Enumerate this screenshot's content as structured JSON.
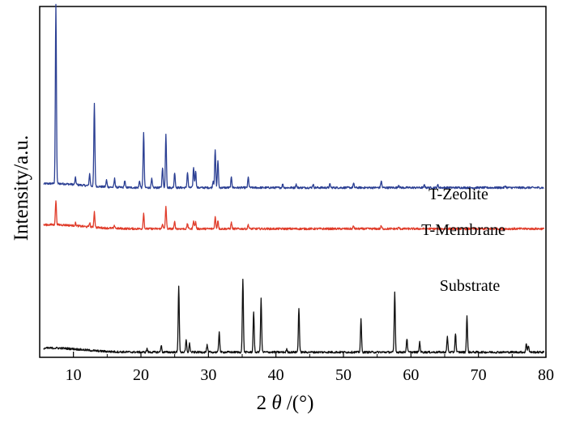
{
  "chart_data": {
    "type": "line",
    "xlabel_prefix": "2",
    "xlabel_symbol": "θ",
    "xlabel_suffix": "/(°)",
    "ylabel": "Intensity/a.u.",
    "xlim": [
      5,
      80
    ],
    "xticks": [
      "10",
      "20",
      "30",
      "40",
      "50",
      "60",
      "70",
      "80"
    ],
    "yticks_shown": false,
    "grid": false,
    "legend": "none",
    "series": [
      {
        "name": "T-Zeolite",
        "color": "#2b3f93",
        "baseline": 0.495,
        "peaks": [
          [
            7.4,
            0.52
          ],
          [
            10.3,
            0.02
          ],
          [
            12.4,
            0.035
          ],
          [
            13.1,
            0.24
          ],
          [
            14.9,
            0.02
          ],
          [
            16.1,
            0.025
          ],
          [
            17.6,
            0.02
          ],
          [
            19.8,
            0.02
          ],
          [
            20.4,
            0.16
          ],
          [
            21.6,
            0.025
          ],
          [
            23.2,
            0.06
          ],
          [
            23.7,
            0.155
          ],
          [
            25.0,
            0.045
          ],
          [
            26.9,
            0.045
          ],
          [
            27.8,
            0.06
          ],
          [
            28.1,
            0.05
          ],
          [
            30.7,
            0.02
          ],
          [
            31.0,
            0.11
          ],
          [
            31.4,
            0.08
          ],
          [
            33.4,
            0.03
          ],
          [
            35.9,
            0.03
          ],
          [
            41.0,
            0.01
          ],
          [
            43.0,
            0.01
          ],
          [
            45.5,
            0.01
          ],
          [
            48.0,
            0.01
          ],
          [
            51.5,
            0.012
          ],
          [
            55.6,
            0.02
          ],
          [
            58.2,
            0.008
          ],
          [
            62.0,
            0.008
          ],
          [
            64.0,
            0.008
          ],
          [
            74.0,
            0.005
          ]
        ]
      },
      {
        "name": "T-Membrane",
        "color": "#e03c2a",
        "baseline": 0.375,
        "peaks": [
          [
            7.4,
            0.07
          ],
          [
            10.3,
            0.008
          ],
          [
            12.4,
            0.012
          ],
          [
            13.1,
            0.045
          ],
          [
            16.1,
            0.008
          ],
          [
            20.4,
            0.045
          ],
          [
            23.2,
            0.015
          ],
          [
            23.7,
            0.065
          ],
          [
            25.0,
            0.02
          ],
          [
            26.9,
            0.015
          ],
          [
            27.8,
            0.025
          ],
          [
            28.1,
            0.02
          ],
          [
            31.0,
            0.035
          ],
          [
            31.4,
            0.025
          ],
          [
            33.4,
            0.018
          ],
          [
            35.9,
            0.012
          ],
          [
            51.5,
            0.008
          ],
          [
            55.6,
            0.008
          ],
          [
            58.2,
            0.004
          ]
        ]
      },
      {
        "name": "Substrate",
        "color": "#111111",
        "baseline": 0.015,
        "peaks": [
          [
            20.9,
            0.01
          ],
          [
            23.0,
            0.02
          ],
          [
            25.6,
            0.195
          ],
          [
            26.7,
            0.035
          ],
          [
            27.2,
            0.025
          ],
          [
            29.8,
            0.02
          ],
          [
            31.6,
            0.06
          ],
          [
            35.1,
            0.215
          ],
          [
            36.7,
            0.12
          ],
          [
            37.8,
            0.155
          ],
          [
            41.6,
            0.008
          ],
          [
            43.4,
            0.13
          ],
          [
            52.6,
            0.095
          ],
          [
            57.6,
            0.175
          ],
          [
            59.4,
            0.04
          ],
          [
            61.3,
            0.03
          ],
          [
            65.4,
            0.045
          ],
          [
            66.6,
            0.055
          ],
          [
            68.3,
            0.105
          ],
          [
            77.1,
            0.025
          ],
          [
            77.4,
            0.02
          ]
        ]
      }
    ]
  }
}
